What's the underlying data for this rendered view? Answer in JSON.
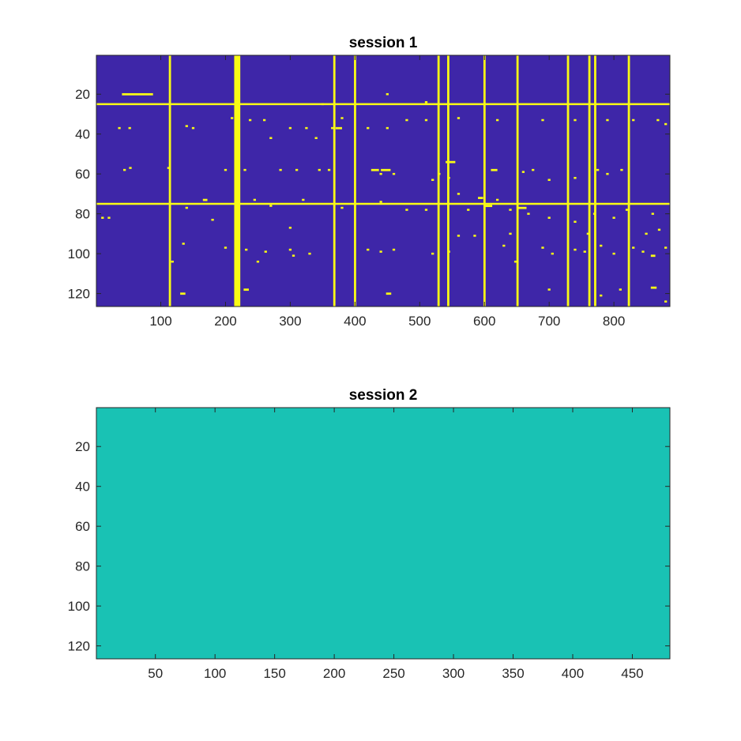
{
  "colors": {
    "background_panel1": "#3e26a8",
    "marks_panel1": "#f9fb15",
    "fill_panel2": "#19c2b4",
    "axis": "#262626"
  },
  "chart_data": [
    {
      "type": "heatmap",
      "title": "session 1",
      "xlim": [
        1,
        886
      ],
      "ylim": [
        1,
        126
      ],
      "y_direction": "reversed",
      "xticks": [
        100,
        200,
        300,
        400,
        500,
        600,
        700,
        800
      ],
      "yticks": [
        20,
        40,
        60,
        80,
        100,
        120
      ],
      "values": "binary",
      "full_columns": [
        114,
        215,
        218,
        221,
        368,
        400,
        529,
        544,
        600,
        651,
        729,
        762,
        771,
        823
      ],
      "full_rows": [
        25,
        75
      ],
      "segments": [
        {
          "row": 20,
          "x0": 40,
          "x1": 88
        },
        {
          "row": 37,
          "x0": 370,
          "x1": 380
        },
        {
          "row": 54,
          "x0": 540,
          "x1": 555
        },
        {
          "row": 58,
          "x0": 425,
          "x1": 437
        },
        {
          "row": 58,
          "x0": 440,
          "x1": 455
        },
        {
          "row": 58,
          "x0": 610,
          "x1": 620
        },
        {
          "row": 72,
          "x0": 590,
          "x1": 598
        },
        {
          "row": 73,
          "x0": 165,
          "x1": 172
        },
        {
          "row": 76,
          "x0": 600,
          "x1": 612
        },
        {
          "row": 77,
          "x0": 650,
          "x1": 665
        },
        {
          "row": 118,
          "x0": 228,
          "x1": 236
        },
        {
          "row": 120,
          "x0": 448,
          "x1": 456
        },
        {
          "row": 120,
          "x0": 130,
          "x1": 138
        },
        {
          "row": 117,
          "x0": 857,
          "x1": 866
        },
        {
          "row": 101,
          "x0": 857,
          "x1": 864
        }
      ],
      "points": [
        [
          36,
          37
        ],
        [
          52,
          37
        ],
        [
          140,
          36
        ],
        [
          150,
          37
        ],
        [
          300,
          37
        ],
        [
          325,
          37
        ],
        [
          365,
          37
        ],
        [
          420,
          37
        ],
        [
          450,
          37
        ],
        [
          44,
          58
        ],
        [
          53,
          57
        ],
        [
          112,
          57
        ],
        [
          200,
          58
        ],
        [
          230,
          58
        ],
        [
          285,
          58
        ],
        [
          310,
          58
        ],
        [
          345,
          58
        ],
        [
          360,
          58
        ],
        [
          210,
          32
        ],
        [
          220,
          32
        ],
        [
          238,
          33
        ],
        [
          260,
          33
        ],
        [
          380,
          32
        ],
        [
          480,
          33
        ],
        [
          510,
          33
        ],
        [
          560,
          32
        ],
        [
          620,
          33
        ],
        [
          690,
          33
        ],
        [
          740,
          33
        ],
        [
          790,
          33
        ],
        [
          830,
          33
        ],
        [
          868,
          33
        ],
        [
          880,
          35
        ],
        [
          270,
          42
        ],
        [
          340,
          42
        ],
        [
          10,
          82
        ],
        [
          20,
          82
        ],
        [
          140,
          77
        ],
        [
          180,
          83
        ],
        [
          245,
          73
        ],
        [
          270,
          76
        ],
        [
          320,
          73
        ],
        [
          380,
          77
        ],
        [
          440,
          74
        ],
        [
          480,
          78
        ],
        [
          510,
          78
        ],
        [
          575,
          78
        ],
        [
          668,
          80
        ],
        [
          700,
          82
        ],
        [
          740,
          84
        ],
        [
          770,
          80
        ],
        [
          800,
          82
        ],
        [
          820,
          78
        ],
        [
          860,
          80
        ],
        [
          135,
          95
        ],
        [
          200,
          97
        ],
        [
          232,
          98
        ],
        [
          250,
          104
        ],
        [
          262,
          99
        ],
        [
          300,
          98
        ],
        [
          305,
          101
        ],
        [
          330,
          100
        ],
        [
          420,
          98
        ],
        [
          440,
          99
        ],
        [
          460,
          98
        ],
        [
          520,
          100
        ],
        [
          545,
          99
        ],
        [
          585,
          91
        ],
        [
          630,
          96
        ],
        [
          648,
          104
        ],
        [
          690,
          97
        ],
        [
          705,
          100
        ],
        [
          740,
          98
        ],
        [
          755,
          99
        ],
        [
          780,
          96
        ],
        [
          800,
          100
        ],
        [
          830,
          97
        ],
        [
          845,
          99
        ],
        [
          880,
          97
        ],
        [
          640,
          90
        ],
        [
          560,
          91
        ],
        [
          118,
          104
        ],
        [
          700,
          118
        ],
        [
          780,
          121
        ],
        [
          810,
          118
        ],
        [
          880,
          124
        ],
        [
          450,
          20
        ],
        [
          510,
          24
        ],
        [
          520,
          63
        ],
        [
          350,
          25
        ],
        [
          700,
          63
        ],
        [
          740,
          62
        ],
        [
          775,
          58
        ],
        [
          790,
          60
        ],
        [
          812,
          58
        ],
        [
          675,
          58
        ],
        [
          660,
          59
        ],
        [
          530,
          60
        ],
        [
          545,
          62
        ],
        [
          440,
          60
        ],
        [
          460,
          60
        ],
        [
          760,
          90
        ],
        [
          850,
          90
        ],
        [
          870,
          88
        ],
        [
          300,
          87
        ],
        [
          560,
          70
        ],
        [
          620,
          73
        ],
        [
          640,
          78
        ]
      ]
    },
    {
      "type": "heatmap",
      "title": "session 2",
      "xlim": [
        1,
        481
      ],
      "ylim": [
        1,
        126
      ],
      "y_direction": "reversed",
      "xticks": [
        50,
        100,
        150,
        200,
        250,
        300,
        350,
        400,
        450
      ],
      "yticks": [
        20,
        40,
        60,
        80,
        100,
        120
      ],
      "values": "uniform"
    }
  ]
}
